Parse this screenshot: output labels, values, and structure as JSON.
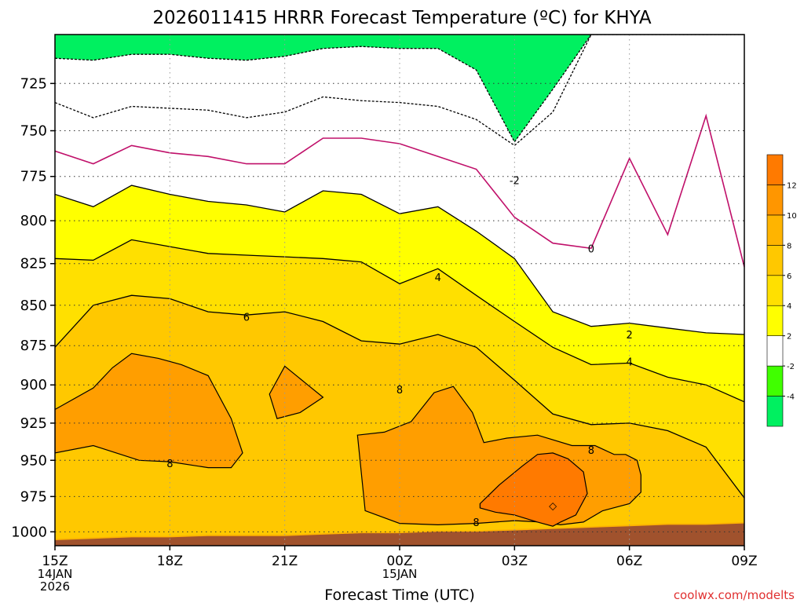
{
  "chart_data": {
    "type": "heatmap",
    "title": "2026011415 HRRR Forecast Temperature (ºC) for KHYA",
    "xlabel": "Forecast Time (UTC)",
    "ylabel": "",
    "credit": "coolwx.com/modelts",
    "y_scale": "log",
    "y_inverted": true,
    "ylim": [
      700,
      1010
    ],
    "y_ticks": [
      725,
      750,
      775,
      800,
      825,
      850,
      875,
      900,
      925,
      950,
      975,
      1000
    ],
    "xlim": [
      15,
      33
    ],
    "x_ticks": [
      {
        "x": 15,
        "lines": [
          "15Z",
          "14JAN",
          "2026"
        ]
      },
      {
        "x": 18,
        "lines": [
          "18Z"
        ]
      },
      {
        "x": 21,
        "lines": [
          "21Z"
        ]
      },
      {
        "x": 24,
        "lines": [
          "00Z",
          "15JAN"
        ]
      },
      {
        "x": 27,
        "lines": [
          "03Z"
        ]
      },
      {
        "x": 30,
        "lines": [
          "06Z"
        ]
      },
      {
        "x": 33,
        "lines": [
          "09Z"
        ]
      }
    ],
    "grid": true,
    "colorbar": {
      "position": "right",
      "levels": [
        -6,
        -4,
        -2,
        2,
        4,
        6,
        8,
        10,
        12,
        14
      ],
      "colors": [
        "#00f060",
        "#40ff00",
        "#ffffff",
        "#ffff00",
        "#ffe000",
        "#ffc800",
        "#ffb400",
        "#ff9600",
        "#ff7a00"
      ],
      "tick_labels": [
        "-4",
        "-2",
        "2",
        "4",
        "6",
        "8",
        "10",
        "12"
      ]
    },
    "contour_labels": [
      {
        "text": "-2",
        "x": 27.0,
        "p": 777
      },
      {
        "text": "0",
        "x": 29.0,
        "p": 816
      },
      {
        "text": "4",
        "x": 25.0,
        "p": 833
      },
      {
        "text": "6",
        "x": 20.0,
        "p": 857
      },
      {
        "text": "2",
        "x": 30.0,
        "p": 868
      },
      {
        "text": "4",
        "x": 30.0,
        "p": 885
      },
      {
        "text": "8",
        "x": 24.0,
        "p": 903
      },
      {
        "text": "8",
        "x": 18.0,
        "p": 952
      },
      {
        "text": "8",
        "x": 29.0,
        "p": 943
      },
      {
        "text": "8",
        "x": 26.0,
        "p": 993
      },
      {
        "text": "◇",
        "x": 28.0,
        "p": 981
      }
    ],
    "series": [
      {
        "level": -4,
        "fill": "#40ff00",
        "x": [
          15,
          16,
          17,
          18,
          19,
          20,
          21,
          22,
          23,
          24,
          25,
          26,
          27,
          28,
          29,
          30,
          31,
          32,
          33
        ],
        "p": [
          735,
          743,
          737,
          738,
          739,
          743,
          740,
          732,
          734,
          735,
          737,
          744,
          758,
          740,
          700,
          700,
          700,
          700,
          700
        ]
      },
      {
        "level": -2,
        "fill": "#ffffff",
        "x": [
          15,
          16,
          17,
          18,
          19,
          20,
          21,
          22,
          23,
          24,
          25,
          26,
          27,
          28,
          29,
          30,
          31,
          32,
          33
        ],
        "p": [
          712,
          713,
          710,
          710,
          712,
          713,
          711,
          707,
          706,
          707,
          707,
          718,
          756,
          728,
          700,
          700,
          700,
          700,
          700
        ]
      },
      {
        "level": 0,
        "fill": "#ffffff",
        "x": [
          15,
          16,
          17,
          18,
          19,
          20,
          21,
          22,
          23,
          24,
          25,
          26,
          27,
          28,
          29,
          30,
          31,
          32,
          33
        ],
        "p": [
          761,
          768,
          758,
          762,
          764,
          768,
          768,
          754,
          754,
          757,
          764,
          771,
          798,
          813,
          816,
          765,
          808,
          742,
          827
        ]
      },
      {
        "level": 2,
        "fill": "#ffff00",
        "x": [
          15,
          16,
          17,
          18,
          19,
          20,
          21,
          22,
          23,
          24,
          25,
          26,
          27,
          28,
          29,
          30,
          31,
          32,
          33
        ],
        "p": [
          785,
          792,
          780,
          785,
          789,
          791,
          795,
          783,
          785,
          796,
          792,
          806,
          822,
          854,
          863,
          861,
          864,
          867,
          868
        ]
      },
      {
        "level": 4,
        "fill": "#ffe000",
        "x": [
          15,
          16,
          17,
          18,
          19,
          20,
          21,
          22,
          23,
          24,
          25,
          26,
          27,
          28,
          29,
          30,
          31,
          32,
          33
        ],
        "p": [
          822,
          823,
          811,
          815,
          819,
          820,
          821,
          822,
          824,
          837,
          828,
          844,
          860,
          876,
          887,
          886,
          895,
          900,
          911
        ]
      },
      {
        "level": 6,
        "fill": "#ffc800",
        "x": [
          15,
          16,
          17,
          18,
          19,
          20,
          21,
          22,
          23,
          24,
          25,
          26,
          27,
          28,
          29,
          30,
          31,
          32,
          33
        ],
        "p": [
          876,
          850,
          844,
          846,
          854,
          856,
          854,
          860,
          872,
          874,
          868,
          876,
          897,
          919,
          926,
          925,
          930,
          941,
          976
        ]
      },
      {
        "level": 8,
        "fill": "#ffb400",
        "x": [
          15,
          16,
          17,
          18,
          19,
          20,
          21,
          22,
          23,
          24,
          25,
          26,
          27,
          28,
          29,
          30,
          31,
          32,
          33
        ],
        "p": [
          1005,
          1004,
          1003,
          1003,
          1002,
          1002,
          1002,
          1001,
          1000,
          1000,
          999,
          999,
          998,
          997,
          996,
          995,
          994,
          994,
          993
        ]
      }
    ],
    "regions_ge8": [
      {
        "x": [
          15,
          16,
          16.5,
          17,
          17.7,
          18.3,
          19,
          19.6,
          19.9,
          19.6,
          19,
          18,
          17.2,
          16,
          15
        ],
        "p": [
          916,
          902,
          889,
          880,
          883,
          887,
          894,
          922,
          945,
          955,
          955,
          951,
          950,
          940,
          945
        ]
      },
      {
        "x": [
          20.6,
          21,
          21.6,
          22.0,
          21.4,
          20.8,
          20.6
        ],
        "p": [
          906,
          888,
          900,
          908,
          918,
          922,
          906
        ]
      },
      {
        "x": [
          22.9,
          23.6,
          24.3,
          24.9,
          25.4,
          25.9,
          26.2,
          26.8,
          27.6,
          28.5,
          29.1,
          29.6,
          29.9,
          30.2,
          30.3,
          30.3,
          30.0,
          29.3,
          28.8,
          28.2,
          27.7,
          27.0,
          26.0,
          25.0,
          24.0,
          23.1,
          22.9
        ],
        "p": [
          933,
          931,
          924,
          905,
          901,
          918,
          938,
          935,
          933,
          940,
          940,
          946,
          946,
          950,
          960,
          972,
          980,
          985,
          993,
          995,
          993,
          992,
          994,
          995,
          994,
          985,
          933
        ]
      }
    ],
    "regions_ge10": [
      {
        "x": [
          26.1,
          26.6,
          27.2,
          27.6,
          28.0,
          28.4,
          28.8,
          28.9,
          28.6,
          28.2,
          28.0,
          27.6,
          27.0,
          26.5,
          26.1,
          26.1
        ],
        "p": [
          980,
          967,
          954,
          946,
          945,
          949,
          958,
          973,
          988,
          993,
          996,
          993,
          988,
          986,
          983,
          980
        ]
      }
    ],
    "ground": {
      "fill": "#a0522d",
      "x": [
        15,
        16,
        17,
        18,
        19,
        20,
        21,
        22,
        23,
        24,
        25,
        26,
        27,
        28,
        29,
        30,
        31,
        32,
        33
      ],
      "p": [
        1006,
        1005,
        1004,
        1004,
        1003,
        1003,
        1003,
        1002,
        1001,
        1001,
        1000,
        1000,
        999,
        998,
        997,
        996,
        995,
        995,
        994
      ]
    }
  }
}
